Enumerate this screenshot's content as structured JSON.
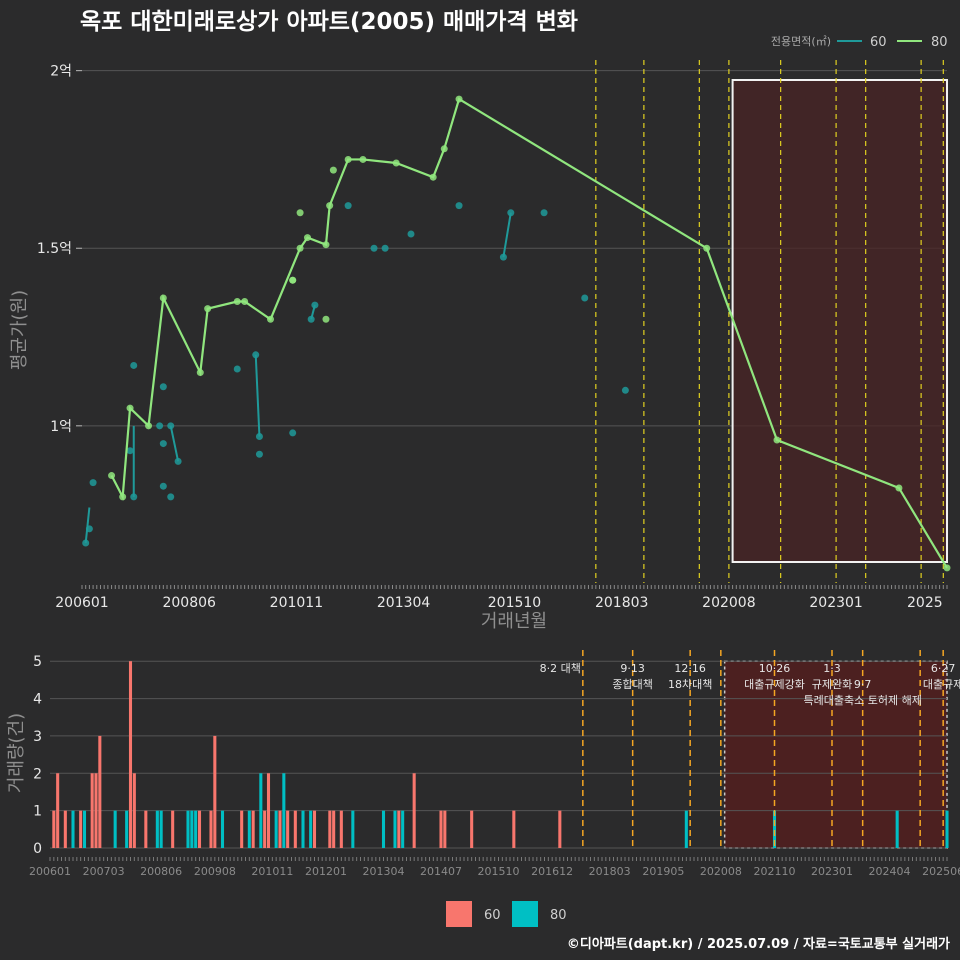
{
  "title": "옥포 대한미래로상가 아파트(2005) 매매가격 변화",
  "footer": "©디아파트(dapt.kr) / 2025.07.09 / 자료=국토교통부 실거래가",
  "colors": {
    "s60": "#1f9a9a",
    "s80": "#90e67e",
    "bar60": "#f8766d",
    "bar80": "#00bfc4",
    "policy": "#e0d020",
    "policy_bottom": "#f5a623",
    "highlight_fill": "#4a2424",
    "bg": "#2b2b2c",
    "grid": "#555555"
  },
  "chart_data": [
    {
      "type": "line",
      "title": "옥포 대한미래로상가 아파트(2005) 매매가격 변화",
      "xlabel": "거래년월",
      "ylabel": "평균가(원)",
      "x_ticks": [
        "200601",
        "200806",
        "201011",
        "201304",
        "201510",
        "201803",
        "202008",
        "202301",
        "2025"
      ],
      "y_ticks": [
        {
          "value": 10000,
          "label": "1억"
        },
        {
          "value": 15000,
          "label": "1.5억"
        },
        {
          "value": 20000,
          "label": "2억"
        }
      ],
      "ylim": [
        8300,
        20300
      ],
      "xlim": [
        "2006-01",
        "2025-07"
      ],
      "legend": {
        "title": "전용면적(㎡)",
        "position": "top-right",
        "entries": [
          "60",
          "80"
        ]
      },
      "series": [
        {
          "name": "80",
          "points": [
            [
              "2006-09",
              8600
            ],
            [
              "2006-12",
              8000
            ],
            [
              "2007-02",
              10500
            ],
            [
              "2007-07",
              10000
            ],
            [
              "2007-11",
              13600
            ],
            [
              "2008-09",
              11500
            ],
            [
              "2008-11",
              13300
            ],
            [
              "2009-07",
              13500
            ],
            [
              "2009-09",
              13500
            ],
            [
              "2010-04",
              13000
            ],
            [
              "2010-10",
              14100
            ],
            [
              "2010-12",
              15000
            ],
            [
              "2011-02",
              15300
            ],
            [
              "2011-07",
              15100
            ],
            [
              "2011-08",
              16200
            ],
            [
              "2012-01",
              17500
            ],
            [
              "2012-05",
              17500
            ],
            [
              "2013-02",
              17400
            ],
            [
              "2013-12",
              17000
            ],
            [
              "2014-03",
              17800
            ],
            [
              "2014-07",
              19200
            ],
            [
              "2020-02",
              15000
            ],
            [
              "2021-09",
              9600
            ],
            [
              "2024-06",
              8250
            ],
            [
              "2025-07",
              6000
            ]
          ],
          "line_points": [
            [
              "2006-09",
              8600
            ],
            [
              "2006-12",
              8000
            ],
            [
              "2007-02",
              10500
            ],
            [
              "2007-07",
              10000
            ],
            [
              "2007-11",
              13600
            ],
            [
              "2008-09",
              11500
            ],
            [
              "2008-11",
              13300
            ],
            [
              "2009-07",
              13500
            ],
            [
              "2009-09",
              13500
            ],
            [
              "2010-04",
              13000
            ],
            [
              "2010-12",
              15000
            ],
            [
              "2011-02",
              15300
            ],
            [
              "2011-07",
              15100
            ],
            [
              "2011-08",
              16200
            ],
            [
              "2012-01",
              17500
            ],
            [
              "2012-05",
              17500
            ],
            [
              "2013-02",
              17400
            ],
            [
              "2013-12",
              17000
            ],
            [
              "2014-03",
              17800
            ],
            [
              "2014-07",
              19200
            ],
            [
              "2020-02",
              15000
            ],
            [
              "2021-09",
              9600
            ],
            [
              "2024-06",
              8250
            ],
            [
              "2025-07",
              6000
            ]
          ],
          "extra_points": [
            [
              "2010-10",
              14100
            ],
            [
              "2010-12",
              16000
            ],
            [
              "2011-07",
              13000
            ],
            [
              "2011-09",
              17200
            ]
          ]
        },
        {
          "name": "60",
          "points": [
            [
              "2006-02",
              6700
            ],
            [
              "2006-03",
              7100
            ],
            [
              "2006-04",
              8400
            ],
            [
              "2007-02",
              9300
            ],
            [
              "2007-03",
              8000
            ],
            [
              "2007-03",
              11700
            ],
            [
              "2007-10",
              10000
            ],
            [
              "2007-11",
              9500
            ],
            [
              "2007-11",
              8300
            ],
            [
              "2007-11",
              11100
            ],
            [
              "2008-01",
              8000
            ],
            [
              "2008-01",
              10000
            ],
            [
              "2008-03",
              9000
            ],
            [
              "2009-07",
              11600
            ],
            [
              "2009-12",
              12000
            ],
            [
              "2010-01",
              9700
            ],
            [
              "2010-01",
              9200
            ],
            [
              "2010-10",
              9800
            ],
            [
              "2011-03",
              13000
            ],
            [
              "2011-04",
              13400
            ],
            [
              "2012-01",
              16200
            ],
            [
              "2012-08",
              15000
            ],
            [
              "2012-11",
              15000
            ],
            [
              "2013-06",
              15400
            ],
            [
              "2014-07",
              16200
            ],
            [
              "2015-07",
              14750
            ],
            [
              "2015-09",
              16000
            ],
            [
              "2016-06",
              16000
            ],
            [
              "2017-05",
              13600
            ],
            [
              "2018-04",
              11000
            ]
          ],
          "segments": [
            [
              [
                "2006-02",
                6700
              ],
              [
                "2006-03",
                7700
              ]
            ],
            [
              [
                "2007-03",
                8000
              ],
              [
                "2007-03",
                10000
              ]
            ],
            [
              [
                "2008-01",
                10000
              ],
              [
                "2008-03",
                9000
              ]
            ],
            [
              [
                "2009-12",
                12000
              ],
              [
                "2010-01",
                9700
              ]
            ],
            [
              [
                "2011-03",
                13000
              ],
              [
                "2011-04",
                13400
              ]
            ],
            [
              [
                "2015-07",
                14750
              ],
              [
                "2015-09",
                16000
              ]
            ]
          ]
        }
      ],
      "policy_lines": [
        "2017-08",
        "2018-09",
        "2019-12",
        "2020-08",
        "2021-10",
        "2023-01",
        "2023-09",
        "2024-12",
        "2025-06"
      ],
      "highlight_range": [
        "2020-09",
        "2025-07"
      ]
    },
    {
      "type": "bar",
      "ylabel": "거래량(건)",
      "x_ticks": [
        "200601",
        "200703",
        "200806",
        "200908",
        "201011",
        "201201",
        "201304",
        "201407",
        "201510",
        "201612",
        "201803",
        "201905",
        "202008",
        "202110",
        "202301",
        "202404",
        "202506"
      ],
      "y_ticks": [
        0,
        1,
        2,
        3,
        4,
        5
      ],
      "ylim": [
        0,
        5.3
      ],
      "legend": {
        "position": "bottom",
        "entries": [
          "60",
          "80"
        ]
      },
      "series": [
        {
          "name": "60",
          "values": [
            [
              "2006-02",
              1
            ],
            [
              "2006-03",
              2
            ],
            [
              "2006-05",
              1
            ],
            [
              "2006-09",
              1
            ],
            [
              "2006-12",
              2
            ],
            [
              "2007-01",
              2
            ],
            [
              "2007-02",
              3
            ],
            [
              "2007-10",
              5
            ],
            [
              "2007-11",
              2
            ],
            [
              "2008-02",
              1
            ],
            [
              "2008-09",
              1
            ],
            [
              "2009-04",
              1
            ],
            [
              "2009-07",
              1
            ],
            [
              "2009-08",
              3
            ],
            [
              "2010-03",
              1
            ],
            [
              "2010-06",
              1
            ],
            [
              "2010-09",
              1
            ],
            [
              "2010-10",
              2
            ],
            [
              "2011-01",
              1
            ],
            [
              "2011-03",
              1
            ],
            [
              "2011-05",
              1
            ],
            [
              "2011-10",
              1
            ],
            [
              "2012-02",
              1
            ],
            [
              "2012-03",
              1
            ],
            [
              "2012-05",
              1
            ],
            [
              "2013-08",
              1
            ],
            [
              "2013-12",
              2
            ],
            [
              "2014-07",
              1
            ],
            [
              "2014-08",
              1
            ],
            [
              "2015-03",
              1
            ],
            [
              "2016-02",
              1
            ],
            [
              "2017-02",
              1
            ]
          ]
        },
        {
          "name": "80",
          "values": [
            [
              "2006-07",
              1
            ],
            [
              "2006-10",
              1
            ],
            [
              "2007-06",
              1
            ],
            [
              "2007-09",
              1
            ],
            [
              "2008-05",
              1
            ],
            [
              "2008-06",
              1
            ],
            [
              "2009-01",
              1
            ],
            [
              "2009-02",
              1
            ],
            [
              "2009-03",
              1
            ],
            [
              "2009-10",
              1
            ],
            [
              "2010-05",
              1
            ],
            [
              "2010-08",
              2
            ],
            [
              "2010-12",
              1
            ],
            [
              "2011-02",
              2
            ],
            [
              "2011-07",
              1
            ],
            [
              "2011-09",
              1
            ],
            [
              "2012-08",
              1
            ],
            [
              "2013-04",
              1
            ],
            [
              "2013-07",
              1
            ],
            [
              "2013-09",
              1
            ],
            [
              "2019-11",
              1
            ],
            [
              "2021-10",
              1
            ],
            [
              "2024-06",
              1
            ],
            [
              "2025-07",
              1
            ]
          ]
        }
      ],
      "policy_lines": [
        "2017-08",
        "2018-09",
        "2019-12",
        "2020-08",
        "2021-10",
        "2023-01",
        "2023-09",
        "2024-12",
        "2025-06"
      ],
      "highlight_range": [
        "2020-09",
        "2025-07"
      ],
      "annotations": [
        {
          "x": "2017-08",
          "lines": [
            "8·2 대책"
          ],
          "align": "end",
          "dy": [
            0
          ]
        },
        {
          "x": "2018-09",
          "lines": [
            "9·13",
            "종합대책"
          ],
          "align": "middle",
          "dy": [
            0,
            1
          ]
        },
        {
          "x": "2019-12",
          "lines": [
            "12·16",
            "18차대책"
          ],
          "align": "middle",
          "dy": [
            0,
            1
          ]
        },
        {
          "x": "2021-10",
          "lines": [
            "10·26",
            "대출규제강화"
          ],
          "align": "middle",
          "dy": [
            0,
            1
          ]
        },
        {
          "x": "2023-01",
          "lines": [
            "1·3",
            "규제완화"
          ],
          "align": "middle",
          "dy": [
            0,
            1
          ]
        },
        {
          "x": "2023-09",
          "lines": [
            "9·7",
            "특례대출축소 토허제 해제"
          ],
          "align": "middle",
          "dy": [
            1,
            2
          ]
        },
        {
          "x": "2025-06",
          "lines": [
            "6·27",
            "대출규제"
          ],
          "align": "middle",
          "dy": [
            0,
            1
          ]
        }
      ]
    }
  ]
}
